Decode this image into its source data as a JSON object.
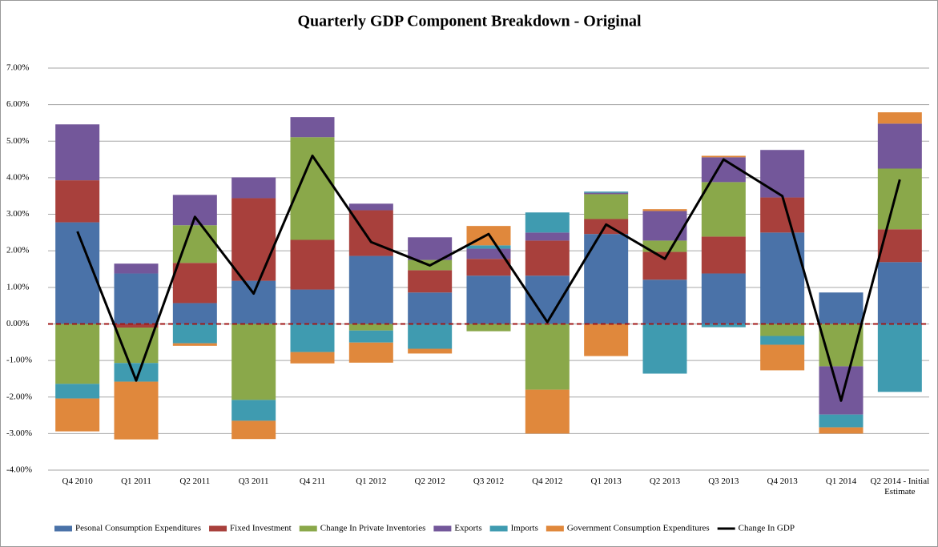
{
  "chart_data": {
    "type": "bar",
    "stacked": true,
    "title": "Quarterly GDP Component Breakdown - Original",
    "categories": [
      "Q4 2010",
      "Q1 2011",
      "Q2 2011",
      "Q3 2011",
      "Q4 211",
      "Q1 2012",
      "Q2 2012",
      "Q3 2012",
      "Q4 2012",
      "Q1 2013",
      "Q2 2013",
      "Q3 2013",
      "Q4 2013",
      "Q1 2014",
      "Q2 2014 - Initial Estimate"
    ],
    "series": [
      {
        "name": "Pesonal Consumption Expenditures",
        "color": "#4a72a8",
        "type": "bar",
        "values": [
          2.78,
          1.38,
          0.57,
          1.18,
          0.94,
          1.86,
          0.86,
          1.32,
          1.32,
          2.46,
          1.21,
          1.38,
          2.5,
          0.86,
          1.69
        ]
      },
      {
        "name": "Fixed Investment",
        "color": "#a8403c",
        "type": "bar",
        "values": [
          1.15,
          -0.1,
          1.1,
          2.26,
          1.36,
          1.25,
          0.61,
          0.46,
          0.96,
          0.41,
          0.76,
          1.01,
          0.96,
          0,
          0.9
        ]
      },
      {
        "name": "Change In Private Inventories",
        "color": "#8aa84a",
        "type": "bar",
        "values": [
          -1.64,
          -0.97,
          1.03,
          -2.08,
          2.81,
          -0.18,
          0.28,
          -0.2,
          -1.8,
          0.68,
          0.31,
          1.49,
          -0.33,
          -1.16,
          1.66
        ]
      },
      {
        "name": "Exports",
        "color": "#73579a",
        "type": "bar",
        "values": [
          1.53,
          0.27,
          0.83,
          0.57,
          0.55,
          0.18,
          0.62,
          0.28,
          0.22,
          0.04,
          0.81,
          0.68,
          1.3,
          -1.32,
          1.23
        ]
      },
      {
        "name": "Imports",
        "color": "#3f9bb0",
        "type": "bar",
        "values": [
          -0.4,
          -0.51,
          -0.53,
          -0.57,
          -0.77,
          -0.33,
          -0.68,
          0.09,
          0.55,
          0.03,
          -1.36,
          -0.09,
          -0.24,
          -0.35,
          -1.86
        ]
      },
      {
        "name": "Government Consumption Expenditures",
        "color": "#e0883c",
        "type": "bar",
        "values": [
          -0.9,
          -1.58,
          -0.07,
          -0.5,
          -0.31,
          -0.55,
          -0.13,
          0.53,
          -1.2,
          -0.88,
          0.05,
          0.04,
          -0.7,
          -0.17,
          0.31
        ]
      },
      {
        "name": "Change In GDP",
        "color": "#000000",
        "type": "line",
        "values": [
          2.53,
          -1.55,
          2.93,
          0.83,
          4.6,
          2.24,
          1.6,
          2.46,
          0.05,
          2.72,
          1.78,
          4.5,
          3.5,
          -2.1,
          3.95
        ]
      }
    ],
    "ylim": [
      -4,
      7
    ],
    "yticks": [
      {
        "value": -4,
        "label": "-4.00%"
      },
      {
        "value": -3,
        "label": "-3.00%"
      },
      {
        "value": -2,
        "label": "-2.00%"
      },
      {
        "value": -1,
        "label": "-1.00%"
      },
      {
        "value": 0,
        "label": "0.00%"
      },
      {
        "value": 1,
        "label": "1.00%"
      },
      {
        "value": 2,
        "label": "2.00%"
      },
      {
        "value": 3,
        "label": "3.00%"
      },
      {
        "value": 4,
        "label": "4.00%"
      },
      {
        "value": 5,
        "label": "5.00%"
      },
      {
        "value": 6,
        "label": "6.00%"
      },
      {
        "value": 7,
        "label": "7.00%"
      }
    ],
    "grid": true,
    "legend": "bottom"
  }
}
